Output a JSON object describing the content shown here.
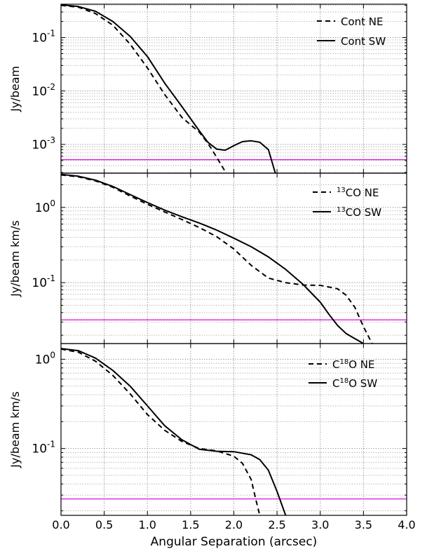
{
  "chart_data": {
    "type": "line",
    "xlabel": "Angular Separation (arcsec)",
    "xlim": [
      0.0,
      4.0
    ],
    "x_ticks": [
      "0.0",
      "0.5",
      "1.0",
      "1.5",
      "2.0",
      "2.5",
      "3.0",
      "3.5",
      "4.0"
    ],
    "x_tick_values": [
      0.0,
      0.5,
      1.0,
      1.5,
      2.0,
      2.5,
      3.0,
      3.5,
      4.0
    ],
    "grid": true,
    "legend_position": "top-right",
    "colors": {
      "threshold": "#e21ee2",
      "series": "#000000"
    },
    "panels": [
      {
        "ylabel": "Jy/beam",
        "yscale": "log",
        "ylim": [
          0.00029,
          0.42
        ],
        "y_ticks": [
          {
            "value": 0.1,
            "base": "10",
            "exp": "-1"
          },
          {
            "value": 0.01,
            "base": "10",
            "exp": "-2"
          },
          {
            "value": 0.001,
            "base": "10",
            "exp": "-3"
          }
        ],
        "threshold": 0.00052,
        "series": [
          {
            "name_pre": "",
            "name_sup": "",
            "name": "Cont NE",
            "style": "dashed",
            "x": [
              0.0,
              0.2,
              0.4,
              0.6,
              0.8,
              1.0,
              1.2,
              1.4,
              1.6,
              1.7,
              1.8,
              1.9
            ],
            "y": [
              0.4,
              0.37,
              0.28,
              0.17,
              0.075,
              0.027,
              0.0086,
              0.0032,
              0.0017,
              0.00105,
              0.00058,
              0.00031
            ]
          },
          {
            "name_pre": "",
            "name_sup": "",
            "name": "Cont SW",
            "style": "solid",
            "x": [
              0.0,
              0.2,
              0.4,
              0.6,
              0.8,
              1.0,
              1.2,
              1.4,
              1.6,
              1.7,
              1.8,
              1.9,
              2.0,
              2.1,
              2.2,
              2.3,
              2.4,
              2.48
            ],
            "y": [
              0.41,
              0.38,
              0.31,
              0.2,
              0.105,
              0.044,
              0.014,
              0.0051,
              0.0018,
              0.0011,
              0.00082,
              0.00078,
              0.00095,
              0.00113,
              0.00117,
              0.0011,
              0.0008,
              0.00029
            ]
          }
        ]
      },
      {
        "ylabel": "Jy/beam km/s",
        "yscale": "log",
        "ylim": [
          0.0155,
          2.85
        ],
        "y_ticks": [
          {
            "value": 1,
            "base": "10",
            "exp": "0"
          },
          {
            "value": 0.1,
            "base": "10",
            "exp": "-1"
          }
        ],
        "threshold": 0.032,
        "series": [
          {
            "name_pre": "",
            "name_sup": "13",
            "name": "CO NE",
            "style": "dashed",
            "x": [
              0.0,
              0.2,
              0.4,
              0.6,
              0.8,
              1.0,
              1.2,
              1.4,
              1.6,
              1.8,
              2.0,
              2.2,
              2.4,
              2.6,
              2.8,
              3.0,
              3.2,
              3.3,
              3.4,
              3.5,
              3.6
            ],
            "y": [
              2.7,
              2.55,
              2.25,
              1.85,
              1.42,
              1.1,
              0.87,
              0.69,
              0.54,
              0.41,
              0.28,
              0.17,
              0.115,
              0.1,
              0.093,
              0.092,
              0.083,
              0.068,
              0.047,
              0.026,
              0.0155
            ]
          },
          {
            "name_pre": "",
            "name_sup": "13",
            "name": "CO SW",
            "style": "solid",
            "x": [
              0.0,
              0.2,
              0.4,
              0.6,
              0.8,
              1.0,
              1.2,
              1.4,
              1.6,
              1.8,
              2.0,
              2.2,
              2.4,
              2.6,
              2.8,
              3.0,
              3.1,
              3.2,
              3.3,
              3.4,
              3.5
            ],
            "y": [
              2.75,
              2.6,
              2.3,
              1.9,
              1.48,
              1.16,
              0.92,
              0.75,
              0.62,
              0.5,
              0.39,
              0.3,
              0.22,
              0.15,
              0.095,
              0.055,
              0.038,
              0.027,
              0.021,
              0.018,
              0.0155
            ]
          }
        ]
      },
      {
        "ylabel": "Jy/beam km/s",
        "yscale": "log",
        "ylim": [
          0.0178,
          1.5
        ],
        "y_ticks": [
          {
            "value": 1,
            "base": "10",
            "exp": "0"
          },
          {
            "value": 0.1,
            "base": "10",
            "exp": "-1"
          }
        ],
        "threshold": 0.0272,
        "series": [
          {
            "name_pre": "C",
            "name_sup": "18",
            "name": "O NE",
            "style": "dashed",
            "x": [
              0.0,
              0.2,
              0.4,
              0.6,
              0.8,
              1.0,
              1.2,
              1.4,
              1.6,
              1.8,
              2.0,
              2.1,
              2.2,
              2.25,
              2.3
            ],
            "y": [
              1.3,
              1.2,
              0.95,
              0.66,
              0.41,
              0.24,
              0.16,
              0.12,
              0.1,
              0.094,
              0.082,
              0.068,
              0.045,
              0.028,
              0.0178
            ]
          },
          {
            "name_pre": "C",
            "name_sup": "18",
            "name": "O SW",
            "style": "solid",
            "x": [
              0.0,
              0.2,
              0.4,
              0.6,
              0.8,
              1.0,
              1.2,
              1.4,
              1.6,
              1.8,
              2.0,
              2.2,
              2.3,
              2.4,
              2.5,
              2.6
            ],
            "y": [
              1.32,
              1.25,
              1.03,
              0.75,
              0.5,
              0.3,
              0.18,
              0.125,
              0.098,
              0.093,
              0.092,
              0.085,
              0.075,
              0.057,
              0.033,
              0.0178
            ]
          }
        ]
      }
    ]
  }
}
